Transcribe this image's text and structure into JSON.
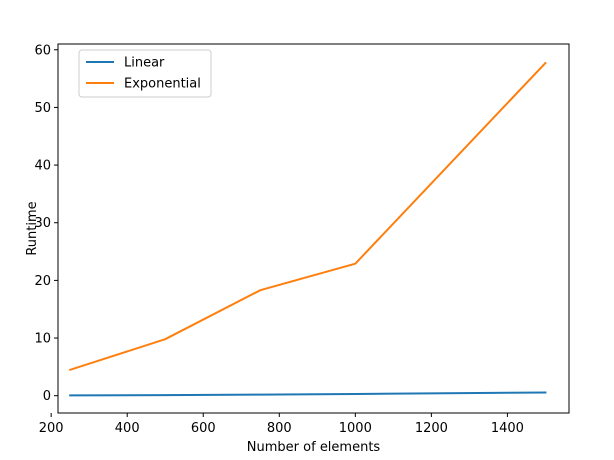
{
  "chart_data": {
    "type": "line",
    "title": "",
    "xlabel": "Number of elements",
    "ylabel": "Runtime",
    "xlim": [
      218,
      1562
    ],
    "ylim": [
      -3,
      61
    ],
    "xticks": [
      200,
      400,
      600,
      800,
      1000,
      1200,
      1400
    ],
    "yticks": [
      0,
      10,
      20,
      30,
      40,
      50,
      60
    ],
    "grid": false,
    "legend": "upper-left",
    "series": [
      {
        "name": "Linear",
        "color": "#1f77b4",
        "x": [
          250,
          500,
          750,
          1000,
          1500
        ],
        "y": [
          0.05,
          0.1,
          0.2,
          0.3,
          0.55
        ]
      },
      {
        "name": "Exponential",
        "color": "#ff7f0e",
        "x": [
          250,
          500,
          750,
          1000,
          1500
        ],
        "y": [
          4.5,
          9.8,
          18.3,
          22.9,
          57.7
        ]
      }
    ]
  }
}
